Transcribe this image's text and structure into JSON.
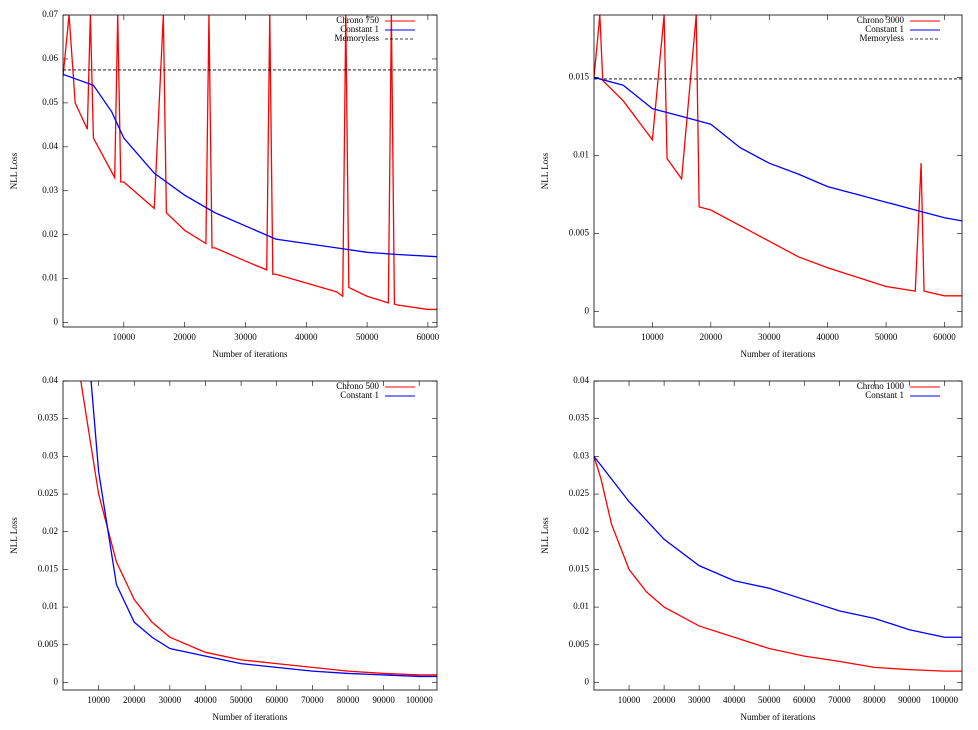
{
  "chart_data": [
    {
      "type": "line",
      "xlabel": "Number of iterations",
      "ylabel": "NLL Loss",
      "xlim": [
        0,
        61500
      ],
      "ylim": [
        -0.001,
        0.07
      ],
      "xticks": [
        10000,
        20000,
        30000,
        40000,
        50000,
        60000
      ],
      "yticks": [
        0,
        0.01,
        0.02,
        0.03,
        0.04,
        0.05,
        0.06,
        0.07
      ],
      "series": [
        {
          "name": "Chrono 750",
          "color": "#ff0000",
          "x": [
            0,
            1000,
            2000,
            4000,
            4500,
            5000,
            8500,
            9000,
            9500,
            10000,
            15000,
            16500,
            17000,
            20000,
            23500,
            24000,
            24500,
            25000,
            30000,
            33500,
            34000,
            34500,
            35000,
            40000,
            45000,
            46000,
            46500,
            47000,
            50000,
            53500,
            54000,
            54500,
            55000,
            60000,
            61500
          ],
          "values": [
            0.056,
            0.07,
            0.05,
            0.044,
            0.07,
            0.042,
            0.033,
            0.07,
            0.032,
            0.032,
            0.026,
            0.07,
            0.025,
            0.021,
            0.018,
            0.07,
            0.017,
            0.017,
            0.014,
            0.012,
            0.07,
            0.011,
            0.011,
            0.009,
            0.007,
            0.006,
            0.07,
            0.008,
            0.006,
            0.0045,
            0.07,
            0.0042,
            0.004,
            0.003,
            0.003
          ]
        },
        {
          "name": "Constant 1",
          "color": "#0000ff",
          "x": [
            0,
            5000,
            8000,
            10000,
            15000,
            20000,
            25000,
            30000,
            35000,
            40000,
            45000,
            50000,
            55000,
            61500
          ],
          "values": [
            0.0565,
            0.054,
            0.048,
            0.042,
            0.034,
            0.029,
            0.025,
            0.022,
            0.019,
            0.018,
            0.017,
            0.016,
            0.0155,
            0.015
          ]
        },
        {
          "name": "Memoryless",
          "color": "#000000",
          "dash": true,
          "x": [
            0,
            61500
          ],
          "values": [
            0.0575,
            0.0575
          ]
        }
      ]
    },
    {
      "type": "line",
      "xlabel": "Number of iterations",
      "ylabel": "NLL Loss",
      "xlim": [
        0,
        63000
      ],
      "ylim": [
        -0.001,
        0.019
      ],
      "xticks": [
        10000,
        20000,
        30000,
        40000,
        50000,
        60000
      ],
      "yticks": [
        0,
        0.005,
        0.01,
        0.015
      ],
      "series": [
        {
          "name": "Chrono 3000",
          "color": "#ff0000",
          "x": [
            0,
            1000,
            1500,
            5000,
            10000,
            12000,
            12500,
            15000,
            17500,
            18000,
            20000,
            25000,
            30000,
            35000,
            40000,
            45000,
            50000,
            55000,
            56000,
            56500,
            60000,
            63000
          ],
          "values": [
            0.015,
            0.019,
            0.0148,
            0.0135,
            0.011,
            0.019,
            0.0098,
            0.0085,
            0.019,
            0.0067,
            0.0065,
            0.0055,
            0.0045,
            0.0035,
            0.0028,
            0.0022,
            0.0016,
            0.0013,
            0.0095,
            0.0013,
            0.001,
            0.001
          ]
        },
        {
          "name": "Constant 1",
          "color": "#0000ff",
          "x": [
            0,
            5000,
            10000,
            15000,
            20000,
            25000,
            30000,
            35000,
            40000,
            45000,
            50000,
            55000,
            60000,
            63000
          ],
          "values": [
            0.015,
            0.0145,
            0.013,
            0.0125,
            0.012,
            0.0105,
            0.0095,
            0.0088,
            0.008,
            0.0075,
            0.007,
            0.0065,
            0.006,
            0.0058
          ]
        },
        {
          "name": "Memoryless",
          "color": "#000000",
          "dash": true,
          "x": [
            0,
            63000
          ],
          "values": [
            0.0149,
            0.0149
          ]
        }
      ]
    },
    {
      "type": "line",
      "xlabel": "Number of iterations",
      "ylabel": "NLL Loss",
      "xlim": [
        0,
        105000
      ],
      "ylim": [
        -0.001,
        0.04
      ],
      "xticks": [
        10000,
        20000,
        30000,
        40000,
        50000,
        60000,
        70000,
        80000,
        90000,
        100000
      ],
      "yticks": [
        0,
        0.005,
        0.01,
        0.015,
        0.02,
        0.025,
        0.03,
        0.035,
        0.04
      ],
      "series": [
        {
          "name": "Chrono 500",
          "color": "#ff0000",
          "x": [
            3000,
            5000,
            10000,
            15000,
            20000,
            25000,
            30000,
            40000,
            50000,
            60000,
            70000,
            80000,
            90000,
            100000,
            105000
          ],
          "values": [
            0.045,
            0.04,
            0.025,
            0.016,
            0.011,
            0.008,
            0.006,
            0.004,
            0.003,
            0.0025,
            0.002,
            0.0015,
            0.0012,
            0.001,
            0.001
          ]
        },
        {
          "name": "Constant 1",
          "color": "#0000ff",
          "x": [
            7000,
            10000,
            15000,
            20000,
            25000,
            30000,
            40000,
            50000,
            60000,
            70000,
            80000,
            90000,
            100000,
            105000
          ],
          "values": [
            0.045,
            0.028,
            0.013,
            0.008,
            0.006,
            0.0045,
            0.0035,
            0.0025,
            0.002,
            0.0015,
            0.0012,
            0.001,
            0.0008,
            0.0008
          ]
        }
      ]
    },
    {
      "type": "line",
      "xlabel": "Number of iterations",
      "ylabel": "NLL Loss",
      "xlim": [
        0,
        105000
      ],
      "ylim": [
        -0.001,
        0.04
      ],
      "xticks": [
        10000,
        20000,
        30000,
        40000,
        50000,
        60000,
        70000,
        80000,
        90000,
        100000
      ],
      "yticks": [
        0,
        0.005,
        0.01,
        0.015,
        0.02,
        0.025,
        0.03,
        0.035,
        0.04
      ],
      "series": [
        {
          "name": "Chrono 1000",
          "color": "#ff0000",
          "x": [
            0,
            2000,
            5000,
            10000,
            15000,
            20000,
            30000,
            40000,
            50000,
            60000,
            70000,
            80000,
            90000,
            100000,
            105000
          ],
          "values": [
            0.03,
            0.027,
            0.021,
            0.015,
            0.012,
            0.01,
            0.0075,
            0.006,
            0.0045,
            0.0035,
            0.0028,
            0.002,
            0.0017,
            0.0015,
            0.0015
          ]
        },
        {
          "name": "Constant 1",
          "color": "#0000ff",
          "x": [
            0,
            5000,
            10000,
            20000,
            30000,
            40000,
            50000,
            60000,
            70000,
            80000,
            90000,
            100000,
            105000
          ],
          "values": [
            0.03,
            0.027,
            0.024,
            0.019,
            0.0155,
            0.0135,
            0.0125,
            0.011,
            0.0095,
            0.0085,
            0.007,
            0.006,
            0.006
          ]
        }
      ]
    }
  ]
}
